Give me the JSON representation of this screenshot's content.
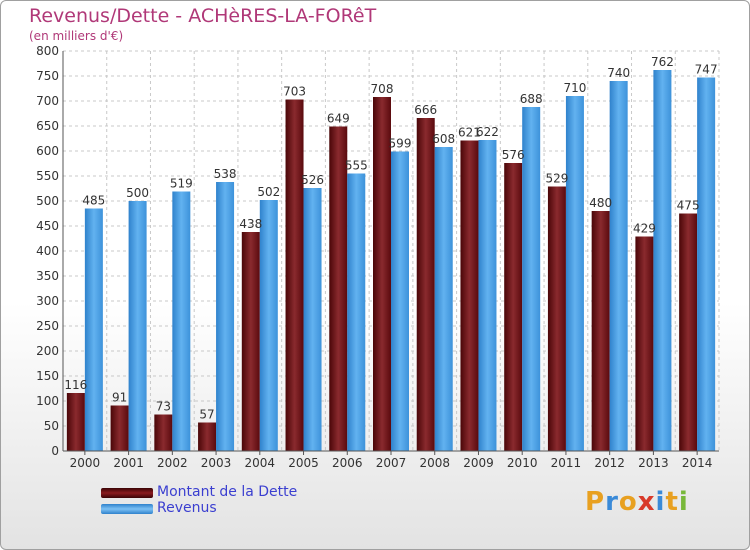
{
  "title": "Revenus/Dette - ACHèRES-LA-FORêT",
  "subtitle": "(en milliers d'€)",
  "logo": "Proxiti",
  "colors": {
    "debt": "#7a1418",
    "revenue": "#4ea0e6",
    "title": "#b03878",
    "legend_text": "#3b3fd0"
  },
  "legend": [
    {
      "label": "Montant de la Dette",
      "color": "#6a0f14"
    },
    {
      "label": "Revenus",
      "color": "#4ea0e6"
    }
  ],
  "chart_data": {
    "type": "bar",
    "categories": [
      "2000",
      "2001",
      "2002",
      "2003",
      "2004",
      "2005",
      "2006",
      "2007",
      "2008",
      "2009",
      "2010",
      "2011",
      "2012",
      "2013",
      "2014"
    ],
    "series": [
      {
        "name": "Montant de la Dette",
        "values": [
          116,
          91,
          73,
          57,
          438,
          703,
          649,
          708,
          666,
          621,
          576,
          529,
          480,
          429,
          475
        ]
      },
      {
        "name": "Revenus",
        "values": [
          485,
          500,
          519,
          538,
          502,
          526,
          555,
          599,
          608,
          622,
          688,
          710,
          740,
          762,
          747
        ]
      }
    ],
    "ylim": [
      0,
      800
    ],
    "yticks": [
      0,
      50,
      100,
      150,
      200,
      250,
      300,
      350,
      400,
      450,
      500,
      550,
      600,
      650,
      700,
      750,
      800
    ],
    "grid": true
  }
}
